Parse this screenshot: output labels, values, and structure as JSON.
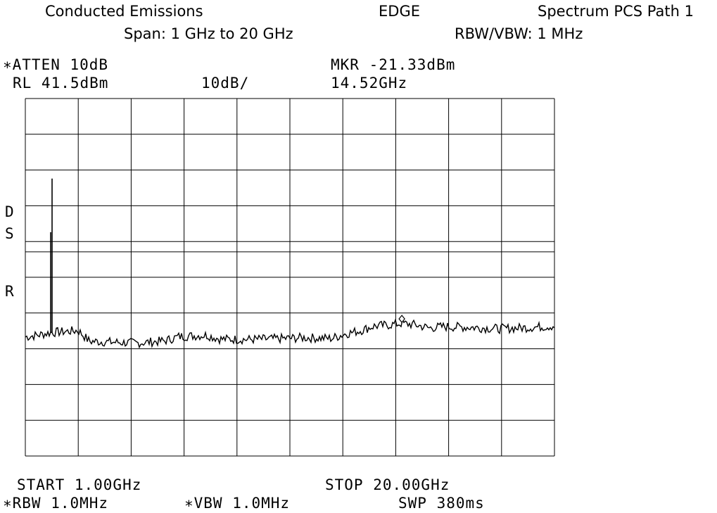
{
  "header": {
    "title": "Conducted Emissions",
    "mode": "EDGE",
    "path": "Spectrum PCS Path 1",
    "span": "Span: 1 GHz to 20 GHz",
    "rbw_vbw": "RBW/VBW: 1 MHz"
  },
  "analyzer": {
    "atten": "∗ATTEN 10dB",
    "ref_level": "RL 41.5dBm",
    "scale": "10dB/",
    "marker_label": "MKR -21.33dBm",
    "marker_freq": "14.52GHz",
    "side_d": "D",
    "side_s": "S",
    "side_r": "R",
    "start": "START 1.00GHz",
    "stop": "STOP 20.00GHz",
    "rbw": "∗RBW 1.0MHz",
    "vbw": "∗VBW 1.0MHz",
    "sweep": "SWP 380ms"
  },
  "chart_data": {
    "type": "line",
    "x_unit": "GHz",
    "y_unit": "dBm",
    "xlim": [
      1.0,
      20.0
    ],
    "ylim": [
      -58.5,
      41.5
    ],
    "divisions": {
      "x": 10,
      "y": 10,
      "db_per_div": 10
    },
    "display_line_dbm": -1.4,
    "grid": true,
    "marker": {
      "x": 14.52,
      "y": -21.33
    },
    "spike": {
      "x": 1.96,
      "peak": 19.1,
      "secondary": 4.1
    },
    "series": [
      {
        "x": [
          1.0,
          1.5,
          1.9,
          2.9,
          3.3,
          4.0,
          5.0,
          6.0,
          6.5,
          7.5,
          8.0,
          9.0,
          10.0,
          11.0,
          12.0,
          12.5,
          13.0,
          13.5,
          14.0,
          14.5,
          15.0,
          15.5,
          16.0,
          17.0,
          18.0,
          19.0,
          20.0
        ],
        "y": [
          -25.2,
          -24.6,
          -24.0,
          -23.4,
          -26.4,
          -26.6,
          -26.9,
          -26.3,
          -25.1,
          -24.7,
          -25.8,
          -25.9,
          -25.7,
          -25.4,
          -25.6,
          -24.3,
          -23.5,
          -22.2,
          -21.9,
          -21.4,
          -21.8,
          -22.7,
          -22.3,
          -22.5,
          -22.9,
          -22.6,
          -22.1
        ]
      }
    ]
  }
}
